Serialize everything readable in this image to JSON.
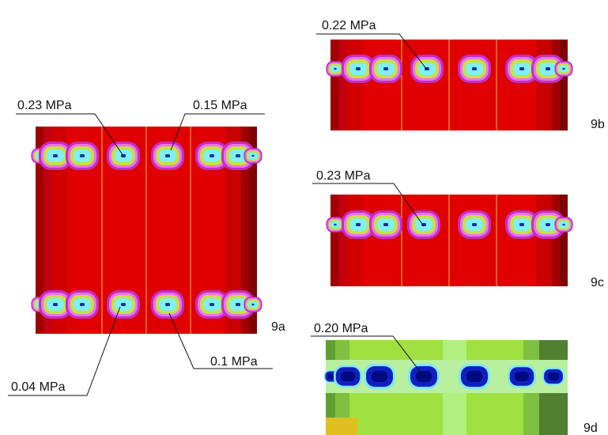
{
  "panels": [
    {
      "label": "9a",
      "annotations": [
        "0.23 MPa",
        "0.15 MPa",
        "0.04 MPa",
        "0.1 MPa"
      ]
    },
    {
      "label": "9b",
      "annotations": [
        "0.22 MPa"
      ]
    },
    {
      "label": "9c",
      "annotations": [
        "0.23 MPa"
      ]
    },
    {
      "label": "9d",
      "annotations": [
        "0.20 MPa"
      ]
    }
  ]
}
